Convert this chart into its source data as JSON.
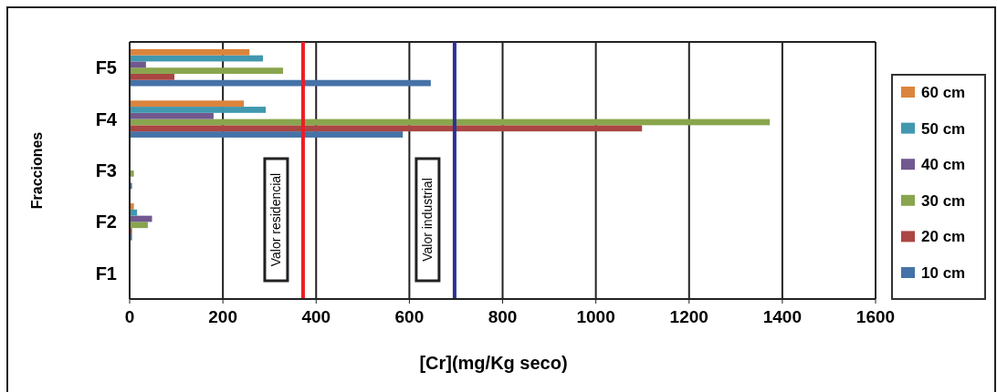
{
  "chart_data": {
    "type": "bar",
    "orientation": "horizontal",
    "xlabel": "[Cr](mg/Kg seco)",
    "ylabel": "Fracciones",
    "categories": [
      "F5",
      "F4",
      "F3",
      "F2",
      "F1"
    ],
    "series": [
      {
        "name": "10 cm",
        "color": "#4572a7",
        "values": [
          646,
          586,
          5,
          5,
          0
        ]
      },
      {
        "name": "20 cm",
        "color": "#aa4643",
        "values": [
          96,
          1099,
          0,
          5,
          0
        ]
      },
      {
        "name": "30 cm",
        "color": "#89a54e",
        "values": [
          329,
          1373,
          9,
          39,
          0
        ]
      },
      {
        "name": "40 cm",
        "color": "#71588f",
        "values": [
          35,
          180,
          0,
          48,
          0
        ]
      },
      {
        "name": "50 cm",
        "color": "#4198af",
        "values": [
          286,
          292,
          0,
          16,
          0
        ]
      },
      {
        "name": "60 cm",
        "color": "#db843d",
        "values": [
          257,
          245,
          0,
          9,
          0
        ]
      }
    ],
    "xlim": [
      0,
      1600
    ],
    "xticks": [
      0,
      200,
      400,
      600,
      800,
      1000,
      1200,
      1400,
      1600
    ],
    "grid": "x",
    "legend": "right",
    "ref_lines": [
      {
        "axis": "x",
        "value": 372,
        "label": "Valor residencial",
        "color": "#ee1c25"
      },
      {
        "axis": "x",
        "value": 697,
        "label": "Valor industrial",
        "color": "#2e3192"
      }
    ]
  }
}
